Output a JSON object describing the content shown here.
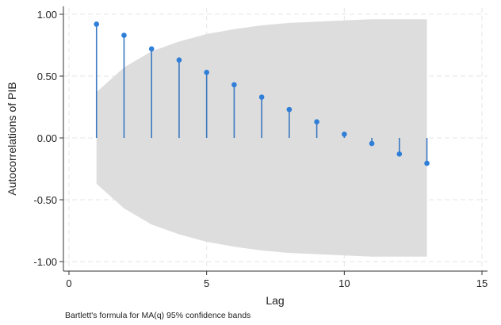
{
  "chart_data": {
    "type": "stem",
    "title": "",
    "xlabel": "Lag",
    "ylabel": "Autocorrelations of PIB",
    "note": "Bartlett's formula for MA(q) 95% confidence bands",
    "xlim": [
      0,
      15
    ],
    "ylim": [
      -1,
      1
    ],
    "xticks": [
      0,
      5,
      10,
      15
    ],
    "xtick_labels": [
      "0",
      "5",
      "10",
      "15"
    ],
    "yticks": [
      -1,
      -0.5,
      0,
      0.5,
      1
    ],
    "ytick_labels": [
      "-1.00",
      "-0.50",
      "0.00",
      "0.50",
      "1.00"
    ],
    "grid": true,
    "lags": [
      1,
      2,
      3,
      4,
      5,
      6,
      7,
      8,
      9,
      10,
      11,
      12,
      13
    ],
    "acf": [
      0.92,
      0.83,
      0.72,
      0.63,
      0.53,
      0.43,
      0.33,
      0.23,
      0.13,
      0.03,
      -0.045,
      -0.13,
      -0.205
    ],
    "conf_band_upper": [
      0.37,
      0.57,
      0.7,
      0.78,
      0.84,
      0.88,
      0.91,
      0.93,
      0.94,
      0.95,
      0.96,
      0.96,
      0.96
    ],
    "colors": {
      "series": "#2f7ed8",
      "stem": "#3a78c0",
      "band": "#dddddd",
      "grid": "#e6e6e6"
    }
  }
}
